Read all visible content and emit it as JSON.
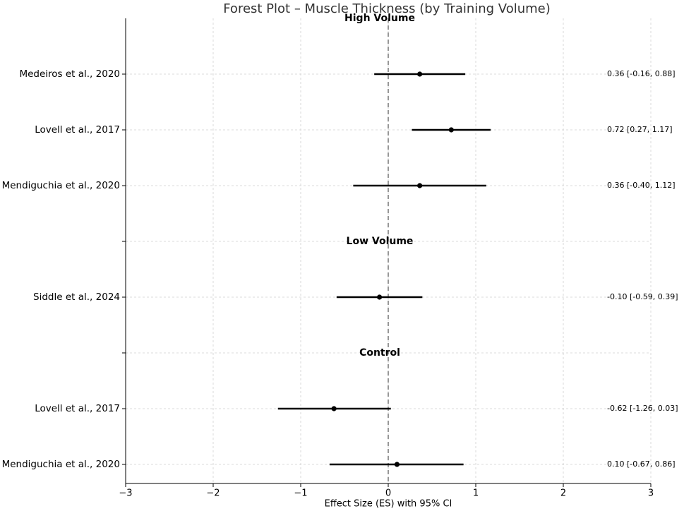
{
  "chart_data": {
    "type": "forest",
    "title": "Forest Plot – Muscle Thickness (by Training Volume)",
    "x_label": "Effect Size (ES) with 95% CI",
    "xlim": [
      -3,
      3
    ],
    "xticks": [
      {
        "value": -3,
        "label": "−3"
      },
      {
        "value": -2,
        "label": "−2"
      },
      {
        "value": -1,
        "label": "−1"
      },
      0,
      1,
      2,
      3
    ],
    "reference_line": 0,
    "grid": true,
    "color": "#000000",
    "groups": [
      {
        "name": "High Volume",
        "studies": [
          {
            "label": "Medeiros et al., 2020",
            "value": 0.36,
            "lower": -0.16,
            "upper": 0.88,
            "value_label": "0.36 [-0.16, 0.88]"
          },
          {
            "label": "Lovell et al., 2017",
            "value": 0.72,
            "lower": 0.27,
            "upper": 1.17,
            "value_label": "0.72 [0.27, 1.17]"
          },
          {
            "label": "Mendiguchia et al., 2020",
            "value": 0.36,
            "lower": -0.4,
            "upper": 1.12,
            "value_label": "0.36 [-0.40, 1.12]"
          }
        ]
      },
      {
        "name": "Low Volume",
        "studies": [
          {
            "label": "Siddle et al., 2024",
            "value": -0.1,
            "lower": -0.59,
            "upper": 0.39,
            "value_label": "-0.10 [-0.59, 0.39]"
          }
        ]
      },
      {
        "name": "Control",
        "studies": [
          {
            "label": "Lovell et al., 2017",
            "value": -0.62,
            "lower": -1.26,
            "upper": 0.03,
            "value_label": "-0.62 [-1.26, 0.03]"
          },
          {
            "label": "Mendiguchia et al., 2020",
            "value": 0.1,
            "lower": -0.67,
            "upper": 0.86,
            "value_label": "0.10 [-0.67, 0.86]"
          }
        ]
      }
    ]
  }
}
